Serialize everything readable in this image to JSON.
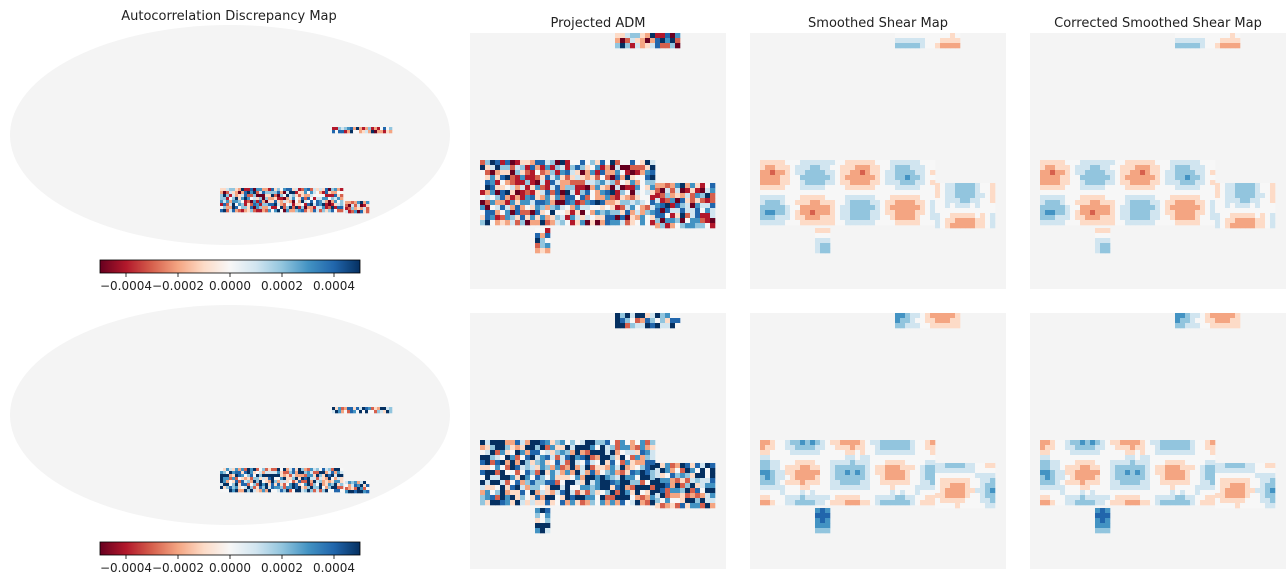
{
  "figure": {
    "title": "Autocorrelation Discrepancy Map",
    "panel_titles": [
      "Projected ADM",
      "Smoothed Shear Map",
      "Corrected Smoothed Shear Map"
    ],
    "colorbars": [
      {
        "lim": [
          -0.0005,
          0.0005
        ],
        "ticks": [
          {
            "value": -0.0004,
            "label": "−0.0004"
          },
          {
            "value": -0.0002,
            "label": "−0.0002"
          },
          {
            "value": 0,
            "label": "0.0000"
          },
          {
            "value": 0.0002,
            "label": "0.0002"
          },
          {
            "value": 0.0004,
            "label": "0.0004"
          }
        ]
      },
      {
        "lim": [
          -0.0005,
          0.0005
        ],
        "ticks": [
          {
            "value": -0.0004,
            "label": "−0.0004"
          },
          {
            "value": -0.0002,
            "label": "−0.0002"
          },
          {
            "value": 0,
            "label": "0.0000"
          },
          {
            "value": 0.0002,
            "label": "0.0002"
          },
          {
            "value": 0.0004,
            "label": "0.0004"
          }
        ]
      }
    ]
  }
}
